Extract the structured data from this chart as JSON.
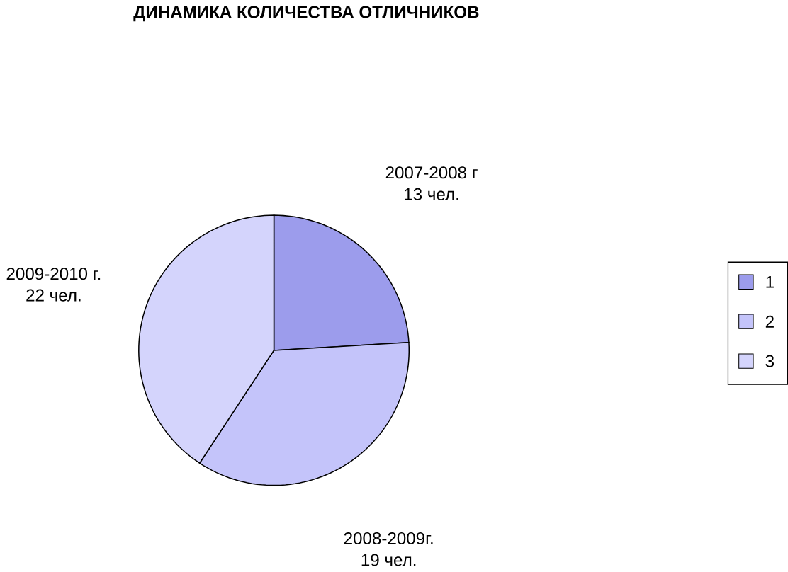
{
  "chart_data": {
    "type": "pie",
    "title": "ДИНАМИКА КОЛИЧЕСТВА ОТЛИЧНИКОВ",
    "categories": [
      "1",
      "2",
      "3"
    ],
    "values": [
      13,
      19,
      22
    ],
    "colors": [
      "#9c9cec",
      "#c4c4fa",
      "#d4d4fc"
    ],
    "value_labels": [
      "13 чел.",
      "19 чел.",
      "22 чел."
    ],
    "annotations": [
      "2007-2008 г",
      "2008-2009г.",
      "2009-2010 г."
    ],
    "legend": "right"
  }
}
